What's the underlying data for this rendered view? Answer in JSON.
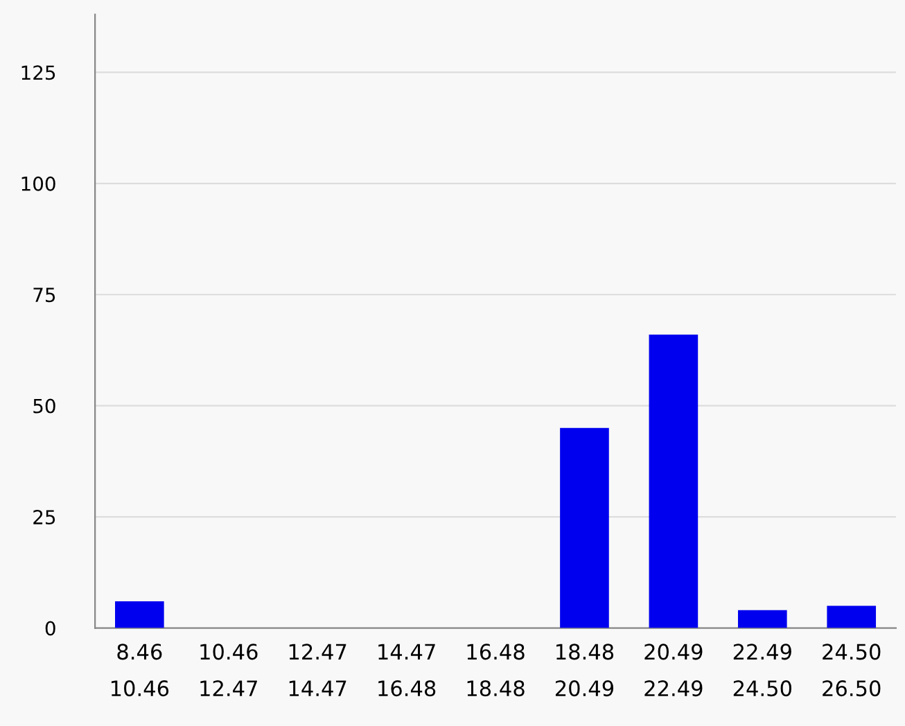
{
  "chart_data": {
    "type": "bar",
    "categories": [
      "8.46\n10.46",
      "10.46\n12.47",
      "12.47\n14.47",
      "14.47\n16.48",
      "16.48\n18.48",
      "18.48\n20.49",
      "20.49\n22.49",
      "22.49\n24.50",
      "24.50\n26.50"
    ],
    "values": [
      6,
      0,
      0,
      0,
      0,
      45,
      66,
      4,
      5
    ],
    "color": "#0000ee",
    "ylim": [
      0,
      138
    ],
    "yticks": [
      0,
      25,
      50,
      75,
      100,
      125
    ],
    "grid": "y"
  }
}
